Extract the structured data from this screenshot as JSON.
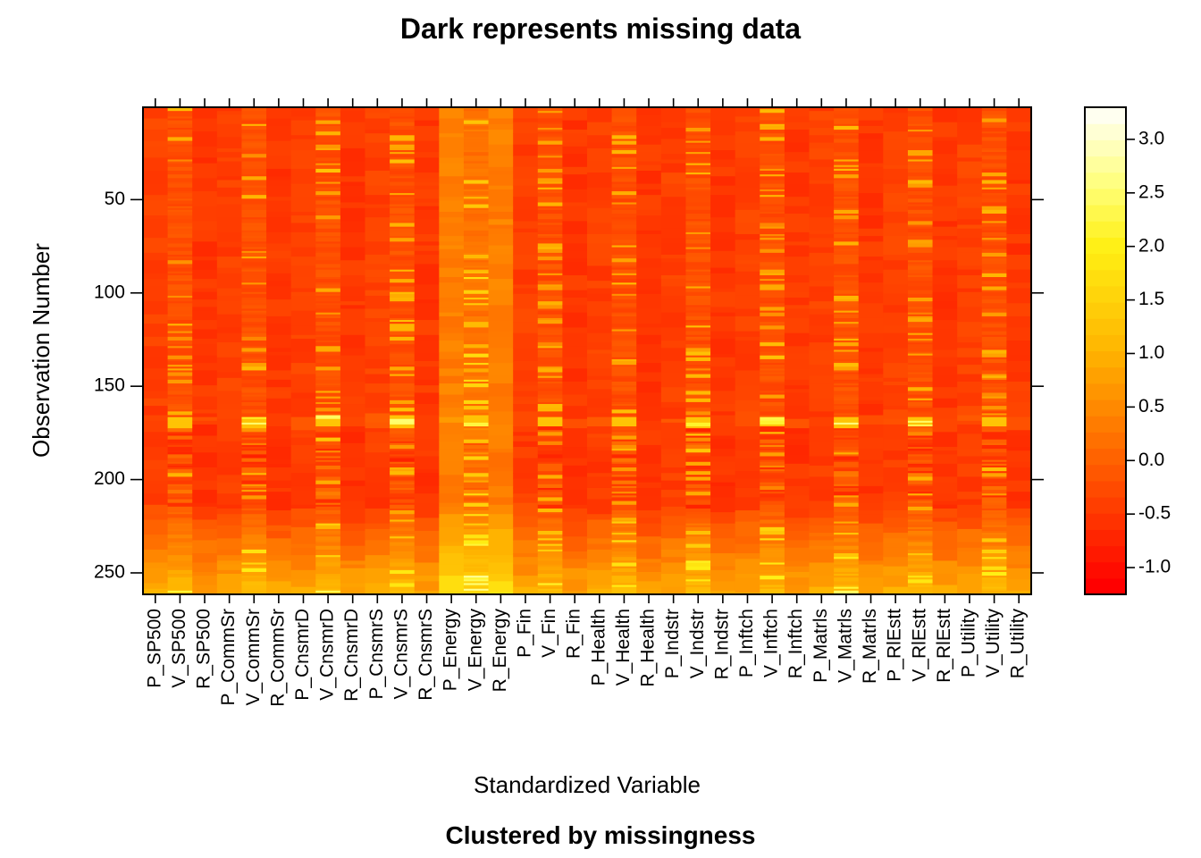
{
  "chart_data": {
    "type": "heatmap",
    "title": "Dark represents missing data",
    "xlabel": "Standardized Variable",
    "ylabel": "Observation Number",
    "subtitle": "Clustered by missingness",
    "x_categories": [
      "P_SP500",
      "V_SP500",
      "R_SP500",
      "P_CommSr",
      "V_CommSr",
      "R_CommSr",
      "P_CnsmrD",
      "V_CnsmrD",
      "R_CnsmrD",
      "P_CnsmrS",
      "V_CnsmrS",
      "R_CnsmrS",
      "P_Energy",
      "V_Energy",
      "R_Energy",
      "P_Fin",
      "V_Fin",
      "R_Fin",
      "P_Health",
      "V_Health",
      "R_Health",
      "P_Indstr",
      "V_Indstr",
      "R_Indstr",
      "P_Inftch",
      "V_Inftch",
      "R_Inftch",
      "P_Matrls",
      "V_Matrls",
      "R_Matrls",
      "P_RlEstt",
      "V_RlEstt",
      "R_RlEstt",
      "P_Utility",
      "V_Utility",
      "R_Utility"
    ],
    "y_ticks": [
      50,
      100,
      150,
      200,
      250
    ],
    "ylim": [
      1,
      261
    ],
    "y_reversed": true,
    "colorbar": {
      "ticks": [
        "-1.0",
        "-0.5",
        "0.0",
        "0.5",
        "1.0",
        "1.5",
        "2.0",
        "2.5",
        "3.0"
      ],
      "tick_values": [
        -1.0,
        -0.5,
        0.0,
        0.5,
        1.0,
        1.5,
        2.0,
        2.5,
        3.0
      ],
      "range": [
        -1.25,
        3.3
      ],
      "palette": "heat",
      "low_color": "#FF0000",
      "high_color": "#FFFFF0"
    }
  }
}
